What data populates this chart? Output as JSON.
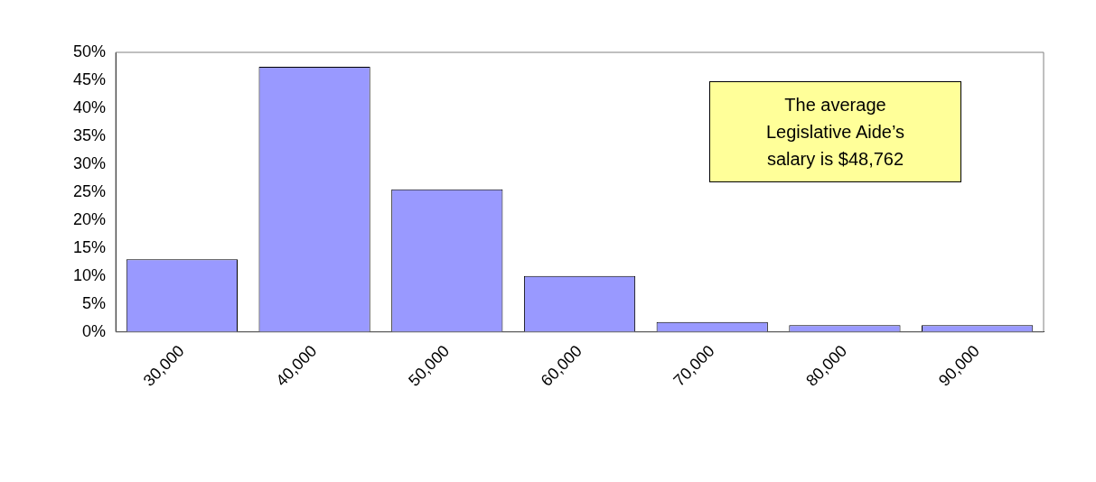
{
  "chart_data": {
    "type": "bar",
    "categories": [
      "30,000",
      "40,000",
      "50,000",
      "60,000",
      "70,000",
      "80,000",
      "90,000"
    ],
    "values": [
      13,
      47.4,
      25.5,
      10,
      1.8,
      1.2,
      1.2
    ],
    "color": "#9999ff",
    "ylim": [
      0,
      50
    ],
    "yticks": [
      {
        "value": 0,
        "label": "0%"
      },
      {
        "value": 5,
        "label": "5%"
      },
      {
        "value": 10,
        "label": "10%"
      },
      {
        "value": 15,
        "label": "15%"
      },
      {
        "value": 20,
        "label": "20%"
      },
      {
        "value": 25,
        "label": "25%"
      },
      {
        "value": 30,
        "label": "30%"
      },
      {
        "value": 35,
        "label": "35%"
      },
      {
        "value": 40,
        "label": "40%"
      },
      {
        "value": 45,
        "label": "45%"
      },
      {
        "value": 50,
        "label": "50%"
      }
    ],
    "annotations": [
      "The average Legislative Aide’s salary is $48,762"
    ],
    "grid": false,
    "legend": false
  }
}
